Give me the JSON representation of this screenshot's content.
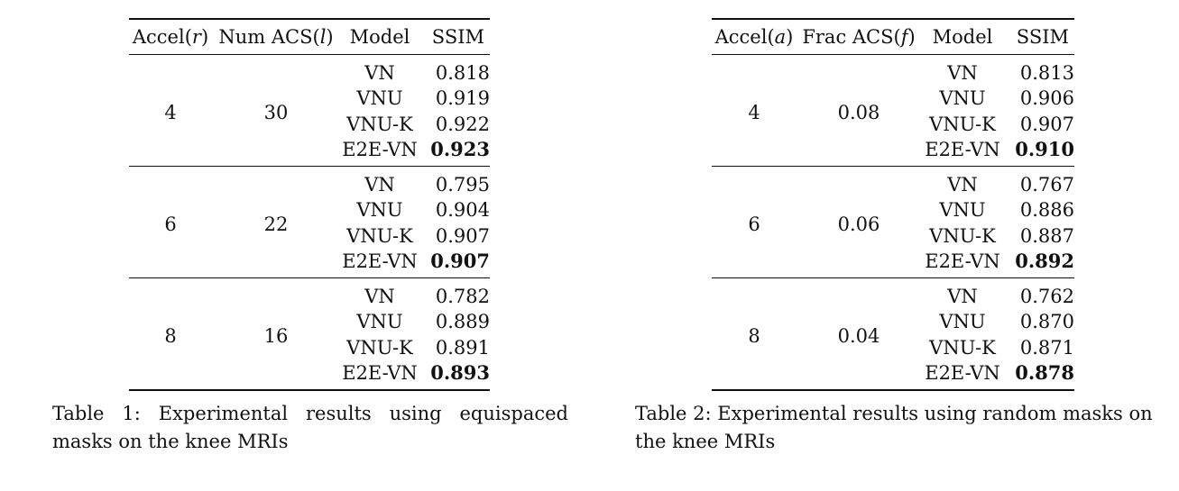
{
  "tables": [
    {
      "headers": [
        "Accel(",
        "r",
        ")",
        "Num ACS(",
        "l",
        ")",
        "Model",
        "SSIM"
      ],
      "groups": [
        {
          "accel": "4",
          "acs": "30",
          "rows": [
            {
              "model": "VN",
              "ssim": "0.818",
              "best": false
            },
            {
              "model": "VNU",
              "ssim": "0.919",
              "best": false
            },
            {
              "model": "VNU-K",
              "ssim": "0.922",
              "best": false
            },
            {
              "model": "E2E-VN",
              "ssim": "0.923",
              "best": true
            }
          ]
        },
        {
          "accel": "6",
          "acs": "22",
          "rows": [
            {
              "model": "VN",
              "ssim": "0.795",
              "best": false
            },
            {
              "model": "VNU",
              "ssim": "0.904",
              "best": false
            },
            {
              "model": "VNU-K",
              "ssim": "0.907",
              "best": false
            },
            {
              "model": "E2E-VN",
              "ssim": "0.907",
              "best": true
            }
          ]
        },
        {
          "accel": "8",
          "acs": "16",
          "rows": [
            {
              "model": "VN",
              "ssim": "0.782",
              "best": false
            },
            {
              "model": "VNU",
              "ssim": "0.889",
              "best": false
            },
            {
              "model": "VNU-K",
              "ssim": "0.891",
              "best": false
            },
            {
              "model": "E2E-VN",
              "ssim": "0.893",
              "best": true
            }
          ]
        }
      ],
      "caption": "Table 1: Experimental results using equispaced masks on the knee MRIs"
    },
    {
      "headers": [
        "Accel(",
        "a",
        ")",
        "Frac ACS(",
        "f",
        ")",
        "Model",
        "SSIM"
      ],
      "groups": [
        {
          "accel": "4",
          "acs": "0.08",
          "rows": [
            {
              "model": "VN",
              "ssim": "0.813",
              "best": false
            },
            {
              "model": "VNU",
              "ssim": "0.906",
              "best": false
            },
            {
              "model": "VNU-K",
              "ssim": "0.907",
              "best": false
            },
            {
              "model": "E2E-VN",
              "ssim": "0.910",
              "best": true
            }
          ]
        },
        {
          "accel": "6",
          "acs": "0.06",
          "rows": [
            {
              "model": "VN",
              "ssim": "0.767",
              "best": false
            },
            {
              "model": "VNU",
              "ssim": "0.886",
              "best": false
            },
            {
              "model": "VNU-K",
              "ssim": "0.887",
              "best": false
            },
            {
              "model": "E2E-VN",
              "ssim": "0.892",
              "best": true
            }
          ]
        },
        {
          "accel": "8",
          "acs": "0.04",
          "rows": [
            {
              "model": "VN",
              "ssim": "0.762",
              "best": false
            },
            {
              "model": "VNU",
              "ssim": "0.870",
              "best": false
            },
            {
              "model": "VNU-K",
              "ssim": "0.871",
              "best": false
            },
            {
              "model": "E2E-VN",
              "ssim": "0.878",
              "best": true
            }
          ]
        }
      ],
      "caption": "Table 2: Experimental results using random masks on the knee MRIs"
    }
  ]
}
